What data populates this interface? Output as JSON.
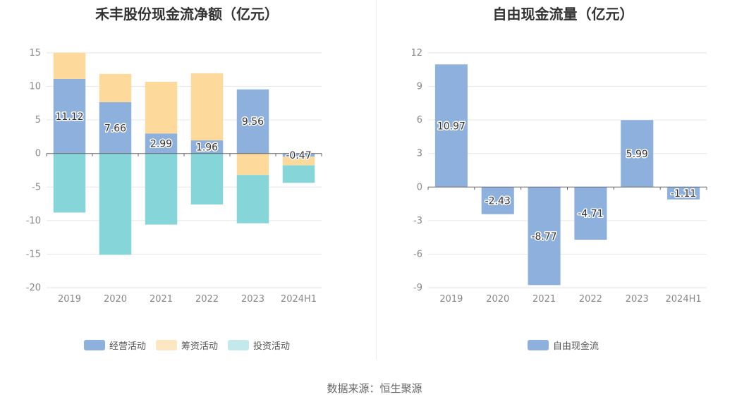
{
  "chart_data": [
    {
      "type": "bar",
      "stacked": true,
      "title": "禾丰股份现金流净额（亿元）",
      "categories": [
        "2019",
        "2020",
        "2021",
        "2022",
        "2023",
        "2024H1"
      ],
      "ylim": [
        -20,
        15
      ],
      "yticks": [
        "15",
        "10",
        "5",
        "0",
        "-5",
        "-10",
        "-15",
        "-20"
      ],
      "grid": true,
      "legend_position": "bottom",
      "series": [
        {
          "name": "经营活动",
          "color": "#8eb0dd",
          "values": [
            11.12,
            7.66,
            2.99,
            1.96,
            9.56,
            -0.47
          ],
          "labels": [
            "11.12",
            "7.66",
            "2.99",
            "1.96",
            "9.56",
            "-0.47"
          ]
        },
        {
          "name": "筹资活动",
          "color": "#fdd99c",
          "values": [
            3.9,
            4.2,
            7.7,
            10.0,
            -3.2,
            -1.3
          ]
        },
        {
          "name": "投资活动",
          "color": "#86d6d9",
          "values": [
            -8.8,
            -15.1,
            -10.6,
            -7.6,
            -7.2,
            -2.6
          ]
        }
      ]
    },
    {
      "type": "bar",
      "title": "自由现金流量（亿元）",
      "categories": [
        "2019",
        "2020",
        "2021",
        "2022",
        "2023",
        "2024H1"
      ],
      "ylim": [
        -9,
        12
      ],
      "yticks": [
        "12",
        "9",
        "6",
        "3",
        "0",
        "-3",
        "-6",
        "-9"
      ],
      "grid": true,
      "legend_position": "bottom",
      "series": [
        {
          "name": "自由现金流",
          "color": "#8eb0dd",
          "values": [
            10.97,
            -2.43,
            -8.77,
            -4.71,
            5.99,
            -1.11
          ],
          "labels": [
            "10.97",
            "-2.43",
            "-8.77",
            "-4.71",
            "5.99",
            "-1.11"
          ]
        }
      ]
    }
  ],
  "legend_swatch_colors": {
    "investing": "#c4e9ec",
    "financing": "#fde6c2",
    "operating": "#8eb0dd"
  },
  "source": "数据来源：恒生聚源"
}
